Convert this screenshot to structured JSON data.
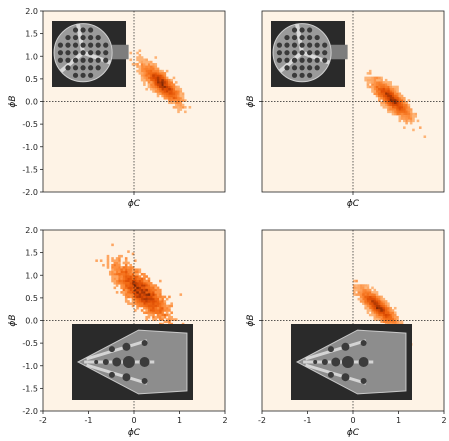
{
  "chart_data": [
    {
      "type": "heatmap",
      "panel": "top-left",
      "xlabel": "ϕC",
      "ylabel": "ϕB",
      "xlim": [
        -2,
        2
      ],
      "ylim": [
        -2,
        2
      ],
      "x_ticks": [],
      "y_ticks": [
        "2.0",
        "1.5",
        "1.0",
        "0.5",
        "0.0",
        "-0.5",
        "-1.0",
        "-1.5",
        "-2.0"
      ],
      "cluster": {
        "center": [
          0.6,
          0.4
        ],
        "spread": [
          0.25,
          0.18
        ],
        "correlation": "negative"
      },
      "inset": {
        "shape": "circular-plate",
        "location": "upper-left"
      },
      "crosshair": [
        0,
        0
      ]
    },
    {
      "type": "heatmap",
      "panel": "top-right",
      "xlabel": "ϕC",
      "ylabel": "ϕB",
      "xlim": [
        -2,
        2
      ],
      "ylim": [
        -2,
        2
      ],
      "x_ticks": [],
      "y_ticks": [],
      "cluster": {
        "center": [
          0.85,
          0.05
        ],
        "spread": [
          0.25,
          0.17
        ],
        "correlation": "negative"
      },
      "inset": {
        "shape": "circular-plate",
        "location": "upper-left"
      },
      "crosshair": [
        0,
        0
      ]
    },
    {
      "type": "heatmap",
      "panel": "bottom-left",
      "xlabel": "ϕC",
      "ylabel": "ϕB",
      "xlim": [
        -2,
        2
      ],
      "ylim": [
        -2,
        2
      ],
      "x_ticks": [
        "-2",
        "-1",
        "0",
        "1",
        "2"
      ],
      "y_ticks": [
        "2.0",
        "1.5",
        "1.0",
        "0.5",
        "0.0",
        "-0.5",
        "-1.0",
        "-1.5",
        "-2.0"
      ],
      "cluster": {
        "center": [
          0.15,
          0.65
        ],
        "spread": [
          0.35,
          0.28
        ],
        "correlation": "negative"
      },
      "inset": {
        "shape": "gripper",
        "location": "lower-center"
      },
      "crosshair": [
        0,
        0
      ]
    },
    {
      "type": "heatmap",
      "panel": "bottom-right",
      "xlabel": "ϕC",
      "ylabel": "ϕB",
      "xlim": [
        -2,
        2
      ],
      "ylim": [
        -2,
        2
      ],
      "x_ticks": [
        "-2",
        "-1",
        "0",
        "1",
        "2"
      ],
      "y_ticks": [],
      "cluster": {
        "center": [
          0.55,
          0.3
        ],
        "spread": [
          0.25,
          0.16
        ],
        "correlation": "negative"
      },
      "inset": {
        "shape": "gripper",
        "location": "lower-center"
      },
      "crosshair": [
        0,
        0
      ]
    }
  ],
  "colors": {
    "background": "#fef3e6",
    "heat_low": "#fdd0a2",
    "heat_mid": "#f16913",
    "heat_high": "#7f2704",
    "inset_dark": "#2a2a2a",
    "metal": "#9a9a9a"
  }
}
